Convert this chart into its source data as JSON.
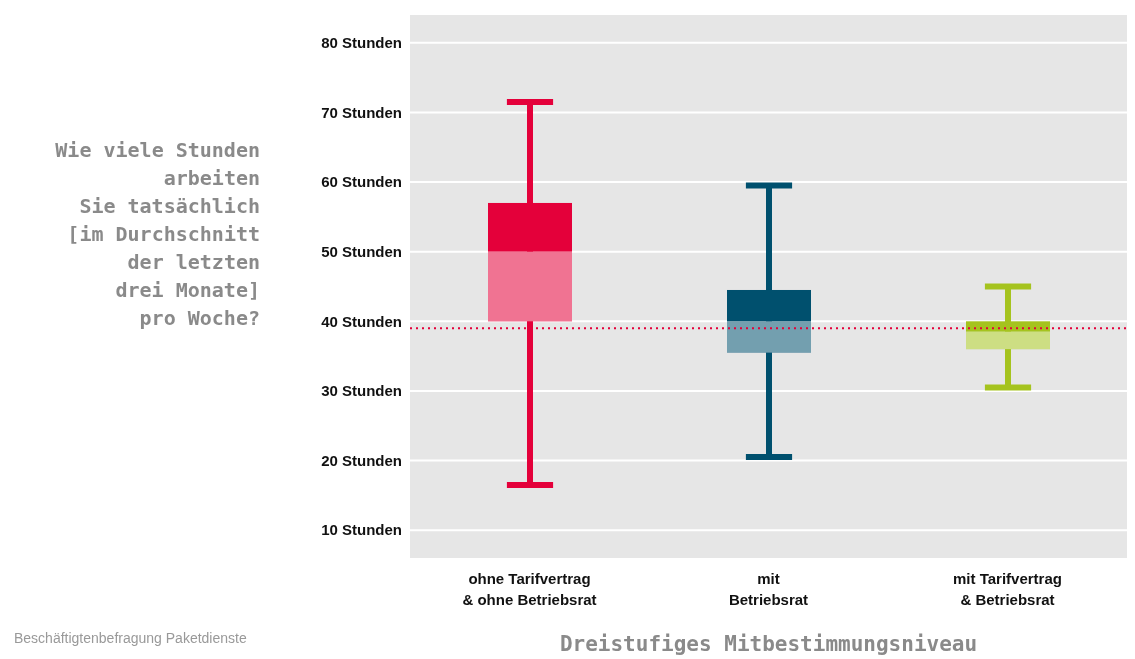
{
  "chart_data": {
    "type": "box",
    "ylabel": "Wie viele Stunden\narbeiten\nSie tatsächlich\n[im Durchschnitt\nder letzten\ndrei Monate]\npro Woche?",
    "xlabel": "Dreistufiges Mitbestimmungsniveau",
    "annotations": [
      "Beschäftigtenbefragung Paketdienste"
    ],
    "categories": [
      "ohne Tarifvertrag\n& ohne Betriebsrat",
      "mit\nBetriebsrat",
      "mit Tarifvertrag\n& Betriebsrat"
    ],
    "colors": [
      "#e4003a",
      "#00506e",
      "#a5c31e"
    ],
    "boxes": [
      {
        "low": 16.5,
        "q1": 40,
        "median": 50,
        "q3": 57,
        "high": 71.5
      },
      {
        "low": 20.5,
        "q1": 35.5,
        "median": 40,
        "q3": 44.5,
        "high": 59.5
      },
      {
        "low": 30.5,
        "q1": 36,
        "median": 38.5,
        "q3": 40,
        "high": 45
      }
    ],
    "ylim": [
      6,
      84
    ],
    "yticks": [
      {
        "value": 10,
        "label": "10 Stunden"
      },
      {
        "value": 20,
        "label": "20 Stunden"
      },
      {
        "value": 30,
        "label": "30 Stunden"
      },
      {
        "value": 40,
        "label": "40 Stunden"
      },
      {
        "value": 50,
        "label": "50 Stunden"
      },
      {
        "value": 60,
        "label": "60 Stunden"
      },
      {
        "value": 70,
        "label": "70 Stunden"
      },
      {
        "value": 80,
        "label": "80 Stunden"
      }
    ],
    "grid": "y",
    "ref_lines": [
      {
        "axis": "y",
        "value": 39,
        "color": "#e4003a",
        "line_style": "dotted"
      }
    ]
  }
}
